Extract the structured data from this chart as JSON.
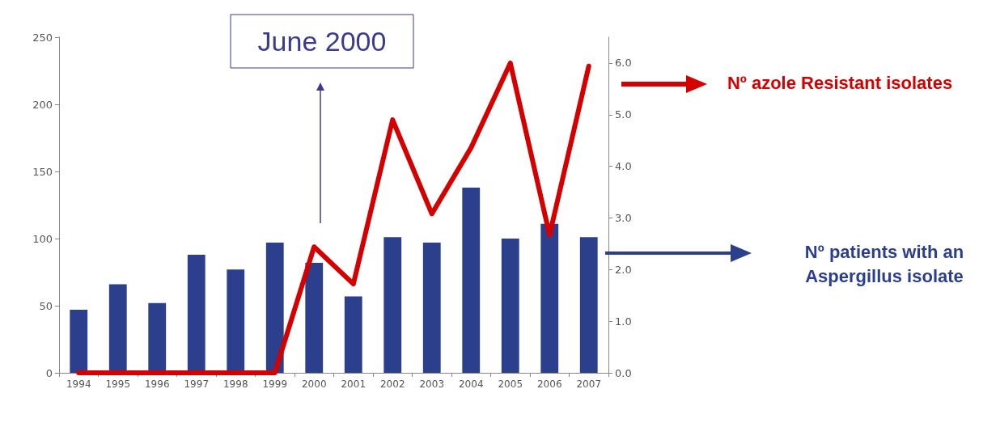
{
  "chart_data": {
    "type": "bar",
    "categories": [
      "1994",
      "1995",
      "1996",
      "1997",
      "1998",
      "1999",
      "2000",
      "2001",
      "2002",
      "2003",
      "2004",
      "2005",
      "2006",
      "2007"
    ],
    "series": [
      {
        "name": "Nº patients with an Aspergillus isolate",
        "color": "#2b3f8c",
        "values": [
          47,
          66,
          52,
          88,
          77,
          97,
          82,
          57,
          101,
          97,
          138,
          100,
          111,
          101
        ]
      },
      {
        "name": "Nº azole Resistant isolates",
        "color": "#d40000",
        "type": "line",
        "axis": "y2",
        "values": [
          0,
          0,
          0,
          0,
          0,
          0,
          2.44,
          1.72,
          4.9,
          3.08,
          4.36,
          6.0,
          2.67,
          5.94
        ]
      }
    ],
    "ylim": [
      0,
      250
    ],
    "yticks": [
      0,
      50,
      100,
      150,
      200,
      250
    ],
    "y2lim": [
      0,
      6.5
    ],
    "y2ticks": [
      {
        "value": 0,
        "label": "0.0"
      },
      {
        "value": 1,
        "label": "1.0"
      },
      {
        "value": 2,
        "label": "2.0"
      },
      {
        "value": 3,
        "label": "3.0"
      },
      {
        "value": 4,
        "label": "4.0"
      },
      {
        "value": 5,
        "label": "5.0"
      },
      {
        "value": 6,
        "label": "6.0"
      }
    ],
    "annotations": [
      "June 2000"
    ],
    "marker": "none",
    "grid": false,
    "legend": "right"
  }
}
